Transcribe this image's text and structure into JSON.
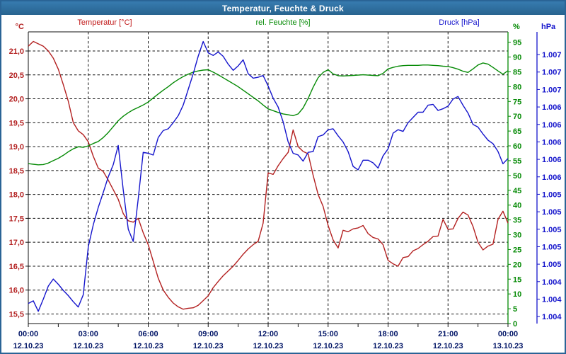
{
  "window": {
    "title": "Temperatur, Feuchte & Druck"
  },
  "legend": {
    "items": [
      {
        "label": "Temperatur [°C]",
        "color": "#c01616"
      },
      {
        "label": "rel. Feuchte [%]",
        "color": "#058a05"
      },
      {
        "label": "Druck [hPa]",
        "color": "#1414cc"
      }
    ]
  },
  "colors": {
    "temperature": "#b32020",
    "humidity": "#058a05",
    "pressure": "#1515cc",
    "x_labels": "#001466",
    "grid": "#111111",
    "plot_border": "#111111",
    "title_bar": "#2d6ea6",
    "window_border": "#2a6496"
  },
  "chart_data": {
    "type": "line",
    "title": "Temperatur, Feuchte & Druck",
    "x_start_hour": 0,
    "x_end_hour": 24,
    "sample_interval_hours": 0.25,
    "grid": "dashed",
    "x_axis": {
      "major_tick_interval_hours": 3,
      "minor_tick_interval_hours": 1.5,
      "labels": [
        {
          "time": "00:00",
          "date": "12.10.23"
        },
        {
          "time": "03:00",
          "date": "12.10.23"
        },
        {
          "time": "06:00",
          "date": "12.10.23"
        },
        {
          "time": "09:00",
          "date": "12.10.23"
        },
        {
          "time": "12:00",
          "date": "12.10.23"
        },
        {
          "time": "15:00",
          "date": "12.10.23"
        },
        {
          "time": "18:00",
          "date": "12.10.23"
        },
        {
          "time": "21:00",
          "date": "12.10.23"
        },
        {
          "time": "00:00",
          "date": "13.10.23"
        }
      ]
    },
    "y_axes": [
      {
        "id": "temperature",
        "unit": "°C",
        "side": "left",
        "color": "#b32020",
        "range": [
          15.3,
          21.4
        ],
        "tick_values": [
          21.0,
          20.5,
          20.0,
          19.5,
          19.0,
          18.5,
          18.0,
          17.5,
          17.0,
          16.5,
          16.0,
          15.5
        ],
        "tick_labels": [
          "21,0",
          "20,5",
          "20,0",
          "19,5",
          "19,0",
          "18,5",
          "18,0",
          "17,5",
          "17,0",
          "16,5",
          "16,0",
          "15,5"
        ],
        "gridlines": true
      },
      {
        "id": "humidity",
        "unit": "%",
        "side": "right-inner",
        "color": "#058a05",
        "range": [
          0,
          98.5
        ],
        "tick_values": [
          95,
          90,
          85,
          80,
          75,
          70,
          65,
          60,
          55,
          50,
          45,
          40,
          35,
          30,
          25,
          20,
          15,
          10,
          5,
          0
        ],
        "tick_labels": [
          "95",
          "90",
          "85",
          "80",
          "75",
          "70",
          "65",
          "60",
          "55",
          "50",
          "45",
          "40",
          "35",
          "30",
          "25",
          "20",
          "15",
          "10",
          "5",
          "0"
        ],
        "gridlines": false
      },
      {
        "id": "pressure",
        "unit": "hPa",
        "side": "right-outer",
        "color": "#1515cc",
        "range": [
          1004.02,
          1007.36
        ],
        "tick_values": [
          1007.1,
          1006.9,
          1006.7,
          1006.5,
          1006.3,
          1006.1,
          1005.9,
          1005.7,
          1005.5,
          1005.3,
          1005.1,
          1004.9,
          1004.7,
          1004.5,
          1004.3,
          1004.1
        ],
        "tick_labels": [
          "1.007",
          "1.007",
          "1.007",
          "1.006",
          "1.006",
          "1.006",
          "1.006",
          "1.006",
          "1.005",
          "1.005",
          "1.005",
          "1.005",
          "1.005",
          "1.004",
          "1.004",
          "1.004"
        ],
        "gridlines": false
      }
    ],
    "series": [
      {
        "name": "Temperatur [°C]",
        "axis": "temperature",
        "color": "#b32020",
        "values": [
          21.1,
          21.2,
          21.15,
          21.1,
          21.0,
          20.85,
          20.62,
          20.3,
          19.95,
          19.5,
          19.33,
          19.25,
          19.1,
          18.8,
          18.55,
          18.48,
          18.3,
          18.1,
          17.9,
          17.6,
          17.45,
          17.42,
          17.5,
          17.2,
          16.95,
          16.6,
          16.25,
          16.0,
          15.85,
          15.73,
          15.65,
          15.6,
          15.62,
          15.63,
          15.68,
          15.78,
          15.88,
          16.05,
          16.18,
          16.3,
          16.4,
          16.5,
          16.62,
          16.75,
          16.86,
          16.95,
          17.02,
          17.4,
          18.45,
          18.42,
          18.6,
          18.75,
          18.88,
          19.35,
          19.0,
          18.9,
          18.85,
          18.4,
          18.0,
          17.75,
          17.35,
          17.05,
          16.88,
          17.25,
          17.22,
          17.28,
          17.3,
          17.35,
          17.18,
          17.1,
          17.07,
          16.95,
          16.62,
          16.55,
          16.5,
          16.68,
          16.7,
          16.82,
          16.87,
          16.95,
          17.02,
          17.12,
          17.13,
          17.48,
          17.27,
          17.28,
          17.5,
          17.63,
          17.57,
          17.33,
          17.0,
          16.84,
          16.92,
          16.96,
          17.48,
          17.65,
          17.4
        ]
      },
      {
        "name": "rel. Feuchte [%]",
        "axis": "humidity",
        "color": "#058a05",
        "values": [
          54.0,
          53.8,
          53.6,
          53.7,
          54.2,
          55.0,
          55.8,
          56.8,
          58.0,
          59.0,
          59.7,
          59.5,
          60.0,
          60.8,
          61.5,
          62.8,
          64.5,
          66.5,
          68.5,
          70.0,
          71.2,
          72.2,
          73.0,
          73.8,
          74.8,
          76.2,
          77.5,
          78.8,
          80.0,
          81.3,
          82.4,
          83.4,
          84.2,
          84.9,
          85.3,
          85.6,
          85.7,
          84.9,
          84.0,
          83.0,
          82.0,
          81.0,
          80.0,
          78.8,
          77.6,
          76.4,
          75.2,
          73.8,
          72.5,
          71.9,
          71.3,
          70.8,
          70.5,
          70.2,
          70.8,
          72.8,
          76.0,
          79.8,
          83.0,
          84.8,
          85.7,
          84.3,
          83.7,
          83.6,
          83.7,
          83.8,
          83.9,
          84.0,
          83.9,
          83.8,
          83.7,
          84.5,
          86.0,
          86.5,
          86.9,
          87.1,
          87.2,
          87.2,
          87.2,
          87.3,
          87.3,
          87.2,
          87.1,
          86.9,
          86.8,
          86.4,
          85.9,
          85.2,
          84.8,
          86.0,
          87.3,
          88.0,
          87.6,
          86.5,
          85.3,
          84.2,
          85.4
        ]
      },
      {
        "name": "Druck [hPa]",
        "axis": "pressure",
        "color": "#1515cc",
        "values": [
          1004.25,
          1004.28,
          1004.16,
          1004.3,
          1004.45,
          1004.53,
          1004.47,
          1004.4,
          1004.34,
          1004.27,
          1004.21,
          1004.35,
          1004.9,
          1005.15,
          1005.35,
          1005.52,
          1005.7,
          1005.84,
          1006.06,
          1005.55,
          1005.1,
          1004.96,
          1005.45,
          1005.98,
          1005.97,
          1005.95,
          1006.15,
          1006.23,
          1006.25,
          1006.32,
          1006.4,
          1006.52,
          1006.7,
          1006.88,
          1007.08,
          1007.25,
          1007.12,
          1007.09,
          1007.13,
          1007.08,
          1006.99,
          1006.92,
          1006.97,
          1007.04,
          1006.88,
          1006.83,
          1006.84,
          1006.86,
          1006.74,
          1006.6,
          1006.5,
          1006.33,
          1006.1,
          1005.97,
          1005.95,
          1005.88,
          1005.98,
          1005.99,
          1006.16,
          1006.18,
          1006.24,
          1006.25,
          1006.17,
          1006.1,
          1005.99,
          1005.82,
          1005.78,
          1005.89,
          1005.89,
          1005.86,
          1005.8,
          1005.94,
          1006.02,
          1006.2,
          1006.24,
          1006.22,
          1006.32,
          1006.38,
          1006.44,
          1006.44,
          1006.52,
          1006.53,
          1006.46,
          1006.48,
          1006.51,
          1006.59,
          1006.62,
          1006.52,
          1006.43,
          1006.3,
          1006.27,
          1006.19,
          1006.12,
          1006.08,
          1005.99,
          1005.85,
          1005.91
        ]
      }
    ]
  }
}
